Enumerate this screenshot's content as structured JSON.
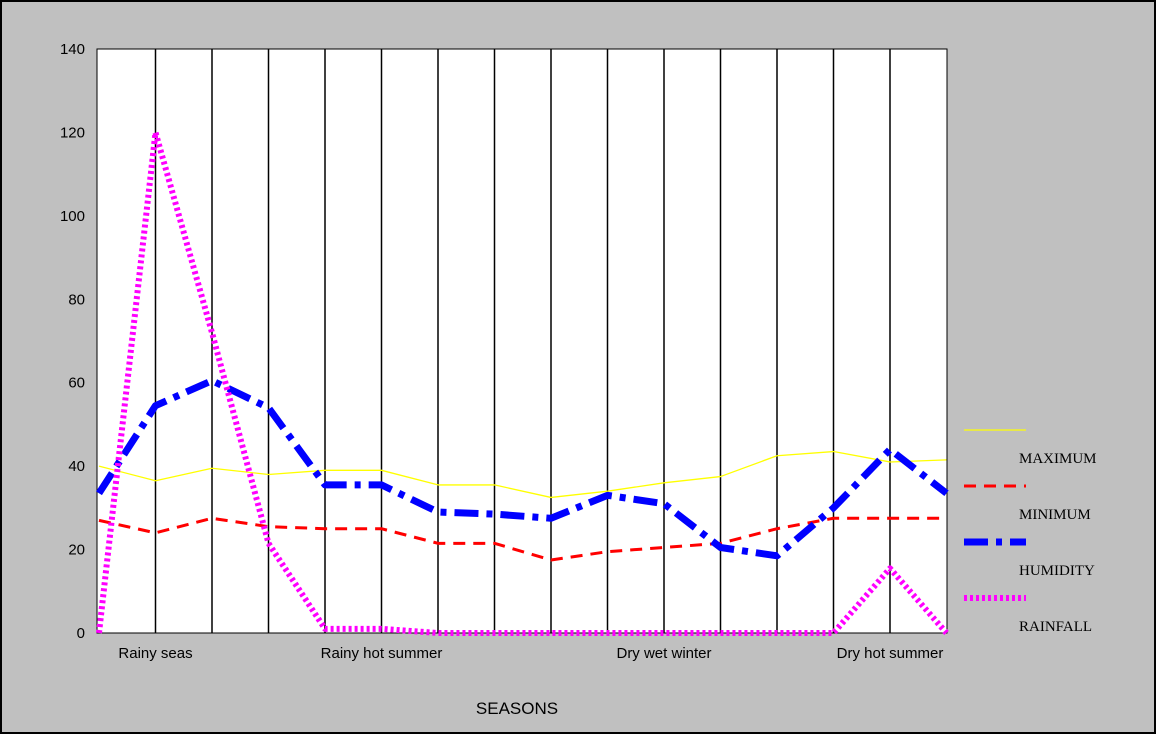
{
  "chart_data": {
    "type": "line",
    "title": "",
    "xlabel": "SEASONS",
    "ylabel": "",
    "ylim": [
      0,
      140
    ],
    "yticks": [
      0,
      20,
      40,
      60,
      80,
      100,
      120,
      140
    ],
    "grid": "vertical lines at each point",
    "legend_position": "right",
    "x_count": 16,
    "x_labels": [
      {
        "index": 1,
        "label": "Rainy seas"
      },
      {
        "index": 5,
        "label": "Rainy hot summer"
      },
      {
        "index": 10,
        "label": "Dry wet winter"
      },
      {
        "index": 14,
        "label": "Dry hot summer"
      }
    ],
    "colors": {
      "background": "#c0c0c0",
      "plot_area": "#ffffff",
      "MAXIMUM": "#ffff00",
      "MINIMUM": "#ff0000",
      "HUMIDITY": "#0000ff",
      "RAINFALL": "#ff00ff"
    },
    "series": [
      {
        "name": "MAXIMUM",
        "style": "solid",
        "values": [
          40,
          36.5,
          39.5,
          38,
          39,
          39,
          35.5,
          35.5,
          32.5,
          34,
          36,
          37.5,
          42.5,
          43.5,
          41,
          41.5
        ]
      },
      {
        "name": "MINIMUM",
        "style": "dashed",
        "values": [
          27,
          24,
          27.5,
          25.5,
          25,
          25,
          21.5,
          21.5,
          17.5,
          19.5,
          20.5,
          21.5,
          25,
          27.5,
          27.5,
          27.5
        ]
      },
      {
        "name": "HUMIDITY",
        "style": "dash-dot",
        "values": [
          33.5,
          54.5,
          60.5,
          54,
          35.5,
          35.5,
          29,
          28.5,
          27.5,
          33,
          31,
          20.5,
          18.5,
          30,
          44,
          33.5
        ]
      },
      {
        "name": "RAINFALL",
        "style": "dotted",
        "values": [
          0,
          120,
          72,
          21.5,
          1,
          1,
          0,
          0,
          0,
          0,
          0,
          0,
          0,
          0,
          15.5,
          0
        ]
      }
    ]
  }
}
